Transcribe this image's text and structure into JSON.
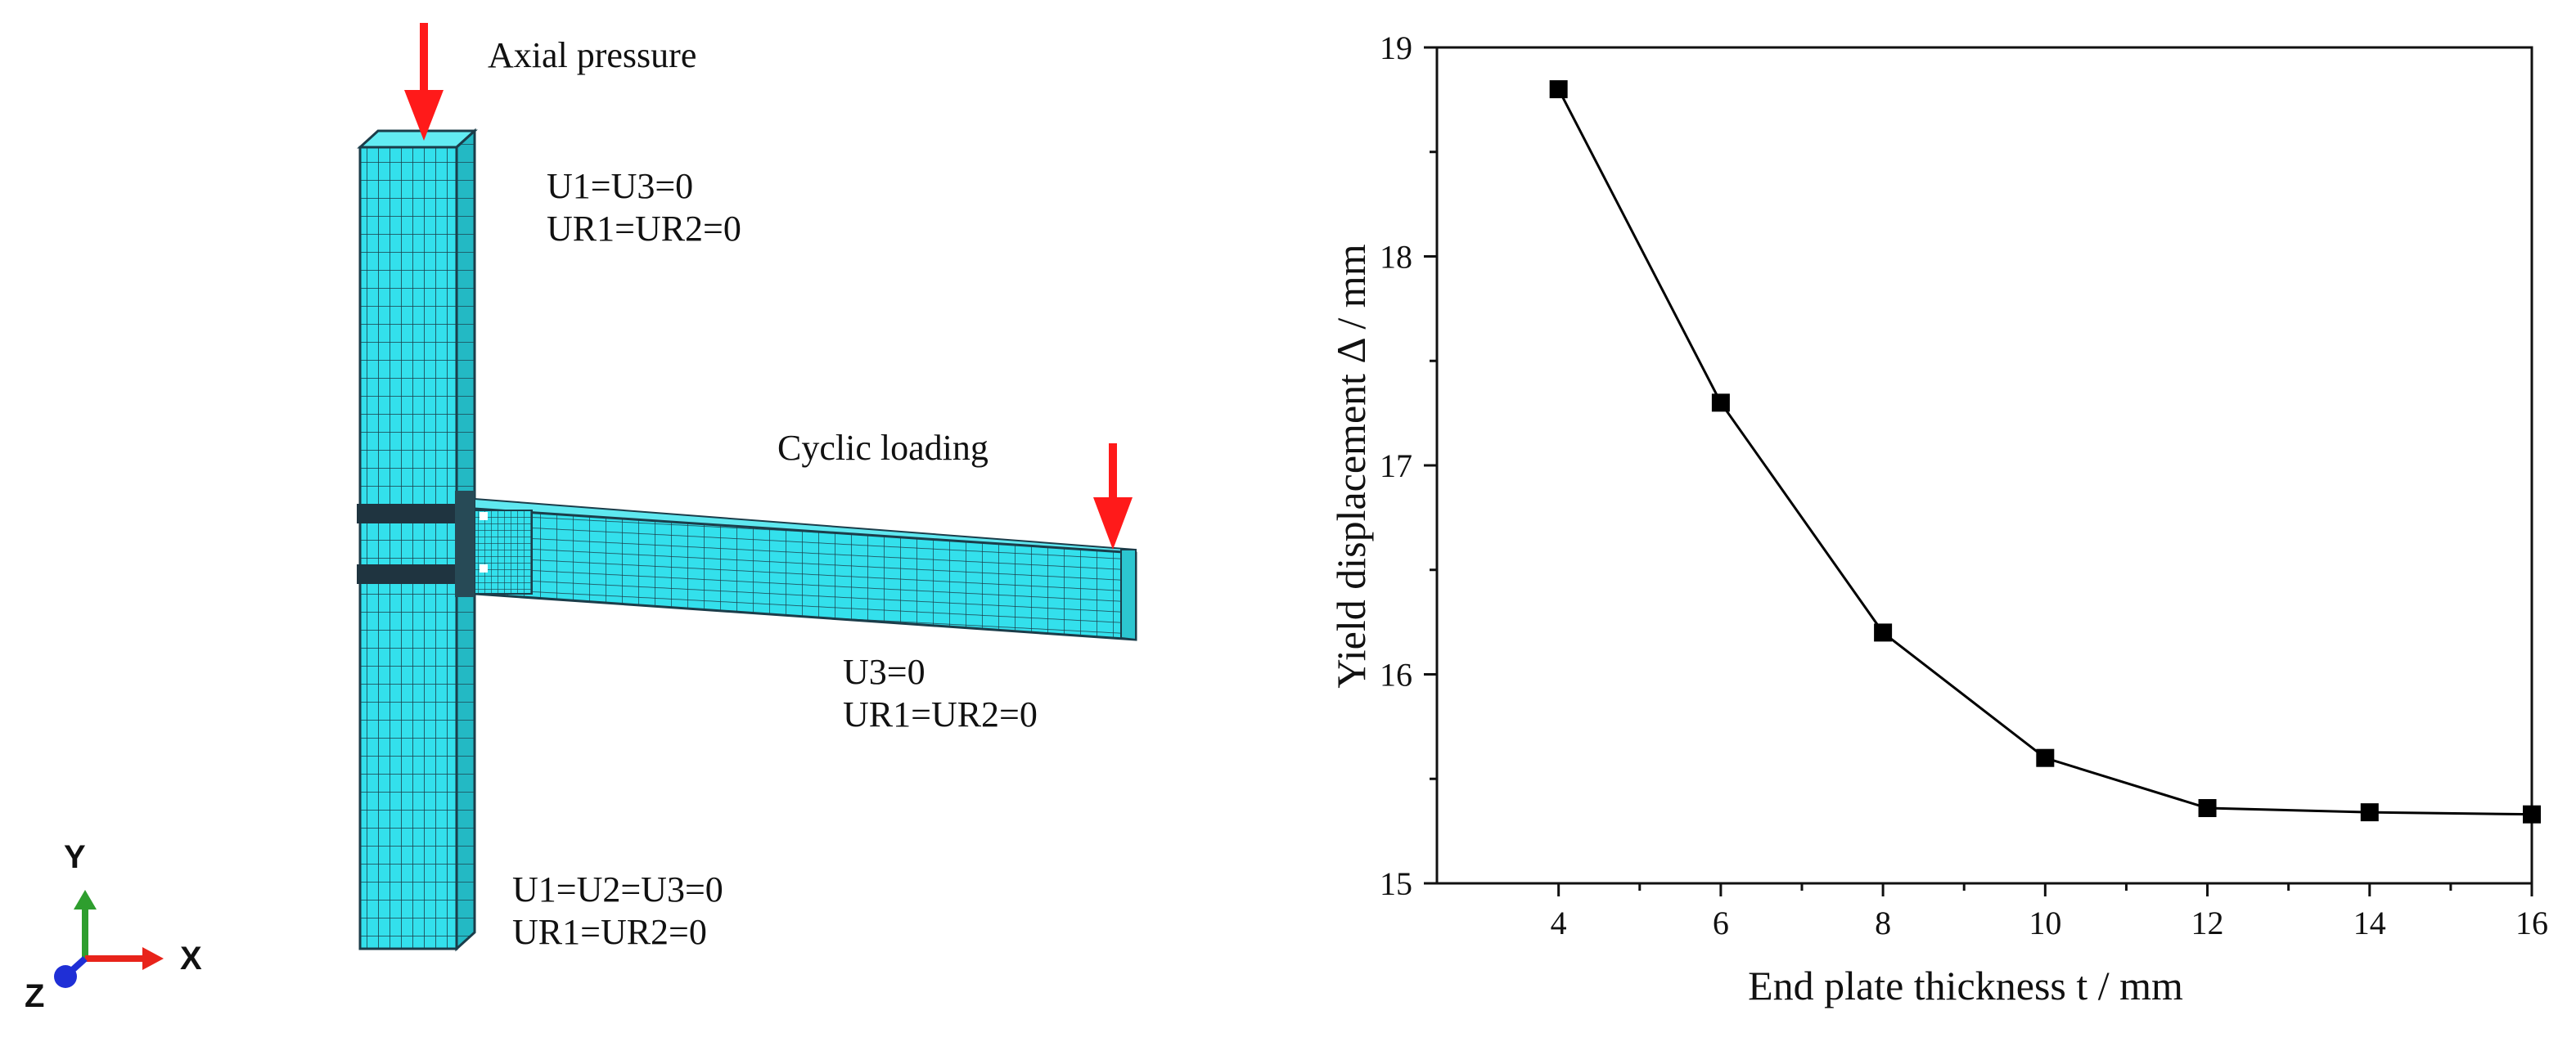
{
  "model": {
    "labels": {
      "axial_pressure": "Axial pressure",
      "cyclic_loading": "Cyclic loading",
      "column_top_bc_line1": "U1=U3=0",
      "column_top_bc_line2": "UR1=UR2=0",
      "beam_end_bc_line1": "U3=0",
      "beam_end_bc_line2": "UR1=UR2=0",
      "column_base_bc_line1": "U1=U2=U3=0",
      "column_base_bc_line2": "UR1=UR2=0"
    },
    "triad": {
      "y": "Y",
      "x": "X",
      "z": "Z"
    },
    "colors": {
      "mesh_fill": "#33e0ec",
      "mesh_line": "#1b3d4a",
      "load_arrow": "#ff1a1a",
      "triad_y": "#2e9e2e",
      "triad_x": "#e8231a",
      "triad_z": "#1f2fd6"
    }
  },
  "chart_data": {
    "type": "line",
    "x": [
      4,
      6,
      8,
      10,
      12,
      14,
      16
    ],
    "series": [
      {
        "values": [
          18.8,
          17.3,
          16.2,
          15.6,
          15.36,
          15.34,
          15.33
        ]
      }
    ],
    "xlabel": "End plate thickness t / mm",
    "ylabel": "Yield displacement Δ / mm",
    "xlim": [
      2.5,
      16
    ],
    "ylim": [
      15,
      19
    ],
    "xticks": [
      4,
      6,
      8,
      10,
      12,
      14,
      16
    ],
    "yticks": [
      15,
      16,
      17,
      18,
      19
    ],
    "grid": false,
    "marker": "square",
    "color": "#000000"
  }
}
